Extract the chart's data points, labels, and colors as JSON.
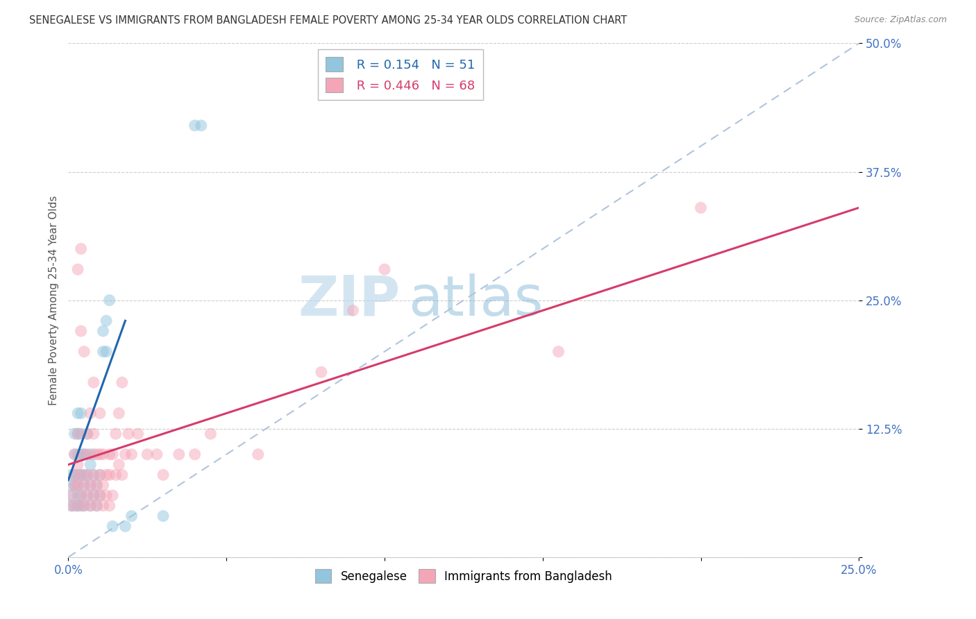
{
  "title": "SENEGALESE VS IMMIGRANTS FROM BANGLADESH FEMALE POVERTY AMONG 25-34 YEAR OLDS CORRELATION CHART",
  "source": "Source: ZipAtlas.com",
  "ylabel": "Female Poverty Among 25-34 Year Olds",
  "xlim": [
    0.0,
    0.25
  ],
  "ylim": [
    0.0,
    0.5
  ],
  "xticks": [
    0.0,
    0.05,
    0.1,
    0.15,
    0.2,
    0.25
  ],
  "yticks": [
    0.0,
    0.125,
    0.25,
    0.375,
    0.5
  ],
  "xticklabels": [
    "0.0%",
    "",
    "",
    "",
    "",
    "25.0%"
  ],
  "yticklabels": [
    "",
    "12.5%",
    "25.0%",
    "37.5%",
    "50.0%"
  ],
  "legend_blue_label": "Senegalese",
  "legend_pink_label": "Immigrants from Bangladesh",
  "blue_R": "R = 0.154",
  "blue_N": "N = 51",
  "pink_R": "R = 0.446",
  "pink_N": "N = 68",
  "blue_color": "#92c5de",
  "pink_color": "#f4a6b8",
  "blue_line_color": "#2166ac",
  "pink_line_color": "#d63b6a",
  "dashed_line_color": "#b0c4de",
  "background_color": "#ffffff",
  "blue_points": [
    [
      0.001,
      0.05
    ],
    [
      0.001,
      0.06
    ],
    [
      0.001,
      0.07
    ],
    [
      0.001,
      0.08
    ],
    [
      0.002,
      0.05
    ],
    [
      0.002,
      0.07
    ],
    [
      0.002,
      0.08
    ],
    [
      0.002,
      0.1
    ],
    [
      0.002,
      0.12
    ],
    [
      0.003,
      0.05
    ],
    [
      0.003,
      0.06
    ],
    [
      0.003,
      0.07
    ],
    [
      0.003,
      0.08
    ],
    [
      0.003,
      0.1
    ],
    [
      0.003,
      0.12
    ],
    [
      0.003,
      0.14
    ],
    [
      0.004,
      0.05
    ],
    [
      0.004,
      0.06
    ],
    [
      0.004,
      0.08
    ],
    [
      0.004,
      0.1
    ],
    [
      0.004,
      0.12
    ],
    [
      0.004,
      0.14
    ],
    [
      0.005,
      0.05
    ],
    [
      0.005,
      0.07
    ],
    [
      0.005,
      0.08
    ],
    [
      0.005,
      0.1
    ],
    [
      0.006,
      0.06
    ],
    [
      0.006,
      0.08
    ],
    [
      0.006,
      0.1
    ],
    [
      0.006,
      0.12
    ],
    [
      0.007,
      0.05
    ],
    [
      0.007,
      0.07
    ],
    [
      0.007,
      0.09
    ],
    [
      0.008,
      0.06
    ],
    [
      0.008,
      0.08
    ],
    [
      0.008,
      0.1
    ],
    [
      0.009,
      0.05
    ],
    [
      0.009,
      0.07
    ],
    [
      0.01,
      0.06
    ],
    [
      0.01,
      0.08
    ],
    [
      0.011,
      0.2
    ],
    [
      0.011,
      0.22
    ],
    [
      0.012,
      0.2
    ],
    [
      0.012,
      0.23
    ],
    [
      0.013,
      0.25
    ],
    [
      0.014,
      0.03
    ],
    [
      0.018,
      0.03
    ],
    [
      0.02,
      0.04
    ],
    [
      0.03,
      0.04
    ],
    [
      0.04,
      0.42
    ],
    [
      0.042,
      0.42
    ]
  ],
  "pink_points": [
    [
      0.001,
      0.05
    ],
    [
      0.001,
      0.06
    ],
    [
      0.002,
      0.07
    ],
    [
      0.002,
      0.08
    ],
    [
      0.002,
      0.1
    ],
    [
      0.003,
      0.05
    ],
    [
      0.003,
      0.07
    ],
    [
      0.003,
      0.09
    ],
    [
      0.003,
      0.12
    ],
    [
      0.003,
      0.28
    ],
    [
      0.004,
      0.06
    ],
    [
      0.004,
      0.08
    ],
    [
      0.004,
      0.22
    ],
    [
      0.004,
      0.3
    ],
    [
      0.005,
      0.05
    ],
    [
      0.005,
      0.07
    ],
    [
      0.005,
      0.1
    ],
    [
      0.005,
      0.2
    ],
    [
      0.006,
      0.06
    ],
    [
      0.006,
      0.08
    ],
    [
      0.006,
      0.12
    ],
    [
      0.007,
      0.05
    ],
    [
      0.007,
      0.07
    ],
    [
      0.007,
      0.1
    ],
    [
      0.007,
      0.14
    ],
    [
      0.008,
      0.06
    ],
    [
      0.008,
      0.08
    ],
    [
      0.008,
      0.12
    ],
    [
      0.008,
      0.17
    ],
    [
      0.009,
      0.05
    ],
    [
      0.009,
      0.07
    ],
    [
      0.009,
      0.1
    ],
    [
      0.01,
      0.06
    ],
    [
      0.01,
      0.08
    ],
    [
      0.01,
      0.1
    ],
    [
      0.01,
      0.14
    ],
    [
      0.011,
      0.05
    ],
    [
      0.011,
      0.07
    ],
    [
      0.011,
      0.1
    ],
    [
      0.012,
      0.06
    ],
    [
      0.012,
      0.08
    ],
    [
      0.013,
      0.05
    ],
    [
      0.013,
      0.08
    ],
    [
      0.013,
      0.1
    ],
    [
      0.014,
      0.06
    ],
    [
      0.014,
      0.1
    ],
    [
      0.015,
      0.08
    ],
    [
      0.015,
      0.12
    ],
    [
      0.016,
      0.09
    ],
    [
      0.016,
      0.14
    ],
    [
      0.017,
      0.08
    ],
    [
      0.017,
      0.17
    ],
    [
      0.018,
      0.1
    ],
    [
      0.019,
      0.12
    ],
    [
      0.02,
      0.1
    ],
    [
      0.022,
      0.12
    ],
    [
      0.025,
      0.1
    ],
    [
      0.028,
      0.1
    ],
    [
      0.03,
      0.08
    ],
    [
      0.035,
      0.1
    ],
    [
      0.04,
      0.1
    ],
    [
      0.045,
      0.12
    ],
    [
      0.06,
      0.1
    ],
    [
      0.08,
      0.18
    ],
    [
      0.09,
      0.24
    ],
    [
      0.1,
      0.28
    ],
    [
      0.155,
      0.2
    ],
    [
      0.2,
      0.34
    ]
  ],
  "blue_line_x": [
    0.0,
    0.018
  ],
  "blue_line_y": [
    0.075,
    0.23
  ],
  "pink_line_x": [
    0.0,
    0.25
  ],
  "pink_line_y": [
    0.09,
    0.34
  ]
}
